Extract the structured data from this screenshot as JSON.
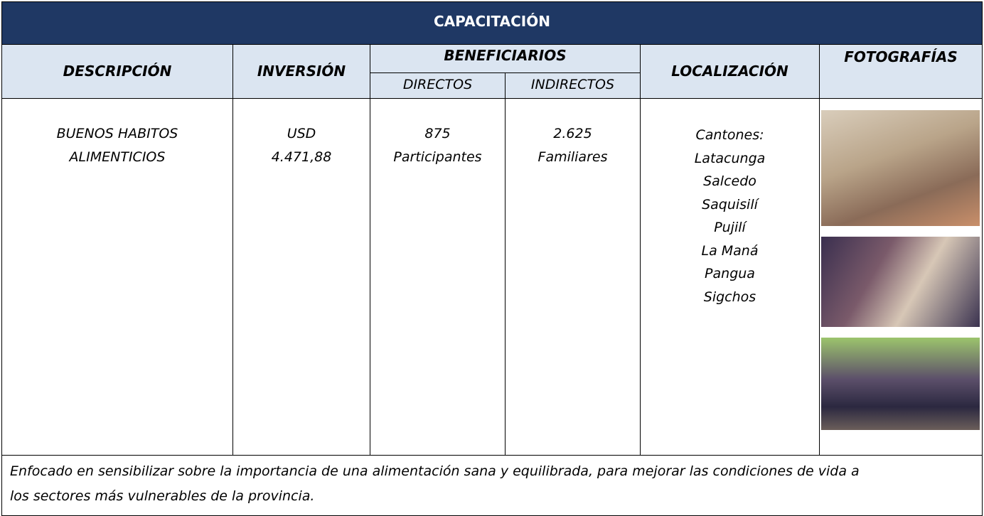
{
  "header": {
    "title": "CAPACITACIÓN"
  },
  "columns": {
    "description": "DESCRIPCIÓN",
    "investment": "INVERSIÓN",
    "beneficiaries": "BENEFICIARIOS",
    "direct": "DIRECTOS",
    "indirect": "INDIRECTOS",
    "location": "LOCALIZACIÓN",
    "photos": "FOTOGRAFÍAS"
  },
  "row": {
    "description": [
      "BUENOS HABITOS",
      "ALIMENTICIOS"
    ],
    "investment": [
      "USD",
      "4.471,88"
    ],
    "direct": [
      "875",
      "Participantes"
    ],
    "indirect": [
      "2.625",
      "Familiares"
    ],
    "location": [
      "Cantones:",
      "Latacunga",
      "Salcedo",
      "Saquisilí",
      "Pujilí",
      "La Maná",
      "Pangua",
      "Sigchos"
    ]
  },
  "footer": [
    "Enfocado en sensibilizar sobre la importancia de una alimentación sana y equilibrada, para mejorar las condiciones de vida a",
    "los sectores más vulnerables de la provincia."
  ]
}
